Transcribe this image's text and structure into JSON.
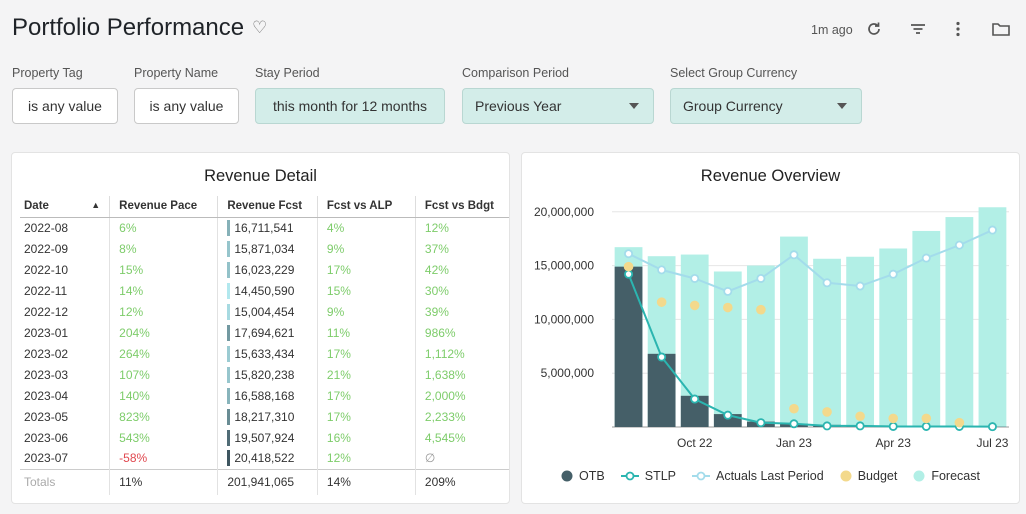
{
  "header": {
    "title": "Portfolio Performance",
    "updated": "1m ago"
  },
  "filters": [
    {
      "label": "Property Tag",
      "value": "is any value"
    },
    {
      "label": "Property Name",
      "value": "is any value"
    },
    {
      "label": "Stay Period",
      "value": "this month for 12 months"
    },
    {
      "label": "Comparison Period",
      "value": "Previous Year"
    },
    {
      "label": "Select Group Currency",
      "value": "Group Currency"
    }
  ],
  "revenue_detail": {
    "title": "Revenue Detail",
    "columns": [
      "Date",
      "Revenue Pace",
      "Revenue Fcst",
      "Fcst vs ALP",
      "Fcst vs Bdgt"
    ],
    "rows": [
      {
        "date": "2022-08",
        "pace": "6%",
        "fcst": "16,711,541",
        "alp": "4%",
        "bdgt": "12%"
      },
      {
        "date": "2022-09",
        "pace": "8%",
        "fcst": "15,871,034",
        "alp": "9%",
        "bdgt": "37%"
      },
      {
        "date": "2022-10",
        "pace": "15%",
        "fcst": "16,023,229",
        "alp": "17%",
        "bdgt": "42%"
      },
      {
        "date": "2022-11",
        "pace": "14%",
        "fcst": "14,450,590",
        "alp": "15%",
        "bdgt": "30%"
      },
      {
        "date": "2022-12",
        "pace": "12%",
        "fcst": "15,004,454",
        "alp": "9%",
        "bdgt": "39%"
      },
      {
        "date": "2023-01",
        "pace": "204%",
        "fcst": "17,694,621",
        "alp": "11%",
        "bdgt": "986%"
      },
      {
        "date": "2023-02",
        "pace": "264%",
        "fcst": "15,633,434",
        "alp": "17%",
        "bdgt": "1,112%"
      },
      {
        "date": "2023-03",
        "pace": "107%",
        "fcst": "15,820,238",
        "alp": "21%",
        "bdgt": "1,638%"
      },
      {
        "date": "2023-04",
        "pace": "140%",
        "fcst": "16,588,168",
        "alp": "17%",
        "bdgt": "2,000%"
      },
      {
        "date": "2023-05",
        "pace": "823%",
        "fcst": "18,217,310",
        "alp": "17%",
        "bdgt": "2,233%"
      },
      {
        "date": "2023-06",
        "pace": "543%",
        "fcst": "19,507,924",
        "alp": "16%",
        "bdgt": "4,545%"
      },
      {
        "date": "2023-07",
        "pace": "-58%",
        "fcst": "20,418,522",
        "alp": "12%",
        "bdgt": "∅"
      }
    ],
    "totals": {
      "label": "Totals",
      "pace": "11%",
      "fcst": "201,941,065",
      "alp": "14%",
      "bdgt": "209%"
    }
  },
  "chart_data": {
    "type": "bar",
    "title": "Revenue Overview",
    "categories": [
      "2022-08",
      "2022-09",
      "2022-10",
      "2022-11",
      "2022-12",
      "2023-01",
      "2023-02",
      "2023-03",
      "2023-04",
      "2023-05",
      "2023-06",
      "2023-07"
    ],
    "x_tick_labels": [
      {
        "index": 2,
        "label": "Oct 22"
      },
      {
        "index": 5,
        "label": "Jan 23"
      },
      {
        "index": 8,
        "label": "Apr 23"
      },
      {
        "index": 11,
        "label": "Jul 23"
      }
    ],
    "ylim": [
      0,
      21000000
    ],
    "y_ticks": [
      5000000,
      10000000,
      15000000,
      20000000
    ],
    "y_tick_labels": [
      "5,000,000",
      "10,000,000",
      "15,000,000",
      "20,000,000"
    ],
    "grid": true,
    "legend_position": "bottom",
    "series": [
      {
        "name": "OTB",
        "kind": "bar",
        "color": "#455f68",
        "values": [
          14900000,
          6800000,
          2900000,
          1200000,
          500000,
          300000,
          200000,
          100000,
          100000,
          100000,
          50000,
          30000
        ]
      },
      {
        "name": "STLP",
        "kind": "line",
        "color": "#2bb5b0",
        "values": [
          14200000,
          6500000,
          2600000,
          1100000,
          400000,
          300000,
          100000,
          100000,
          50000,
          50000,
          50000,
          30000
        ]
      },
      {
        "name": "Actuals Last Period",
        "kind": "line",
        "color": "#a3dceb",
        "values": [
          16100000,
          14600000,
          13800000,
          12600000,
          13800000,
          16000000,
          13400000,
          13100000,
          14200000,
          15700000,
          16900000,
          18300000
        ]
      },
      {
        "name": "Budget",
        "kind": "scatter",
        "color": "#f3d98c",
        "values": [
          14900000,
          11600000,
          11300000,
          11100000,
          10900000,
          1700000,
          1400000,
          1000000,
          800000,
          800000,
          400000,
          null
        ]
      },
      {
        "name": "Forecast",
        "kind": "bar",
        "color": "#b2efe6",
        "values": [
          16711541,
          15871034,
          16023229,
          14450590,
          15004454,
          17694621,
          15633434,
          15820238,
          16588168,
          18217310,
          19507924,
          20418522
        ]
      }
    ]
  },
  "colors": {
    "positive": "#7dcc6a",
    "negative": "#e0484f",
    "filter_accent": "#d3ede9"
  }
}
